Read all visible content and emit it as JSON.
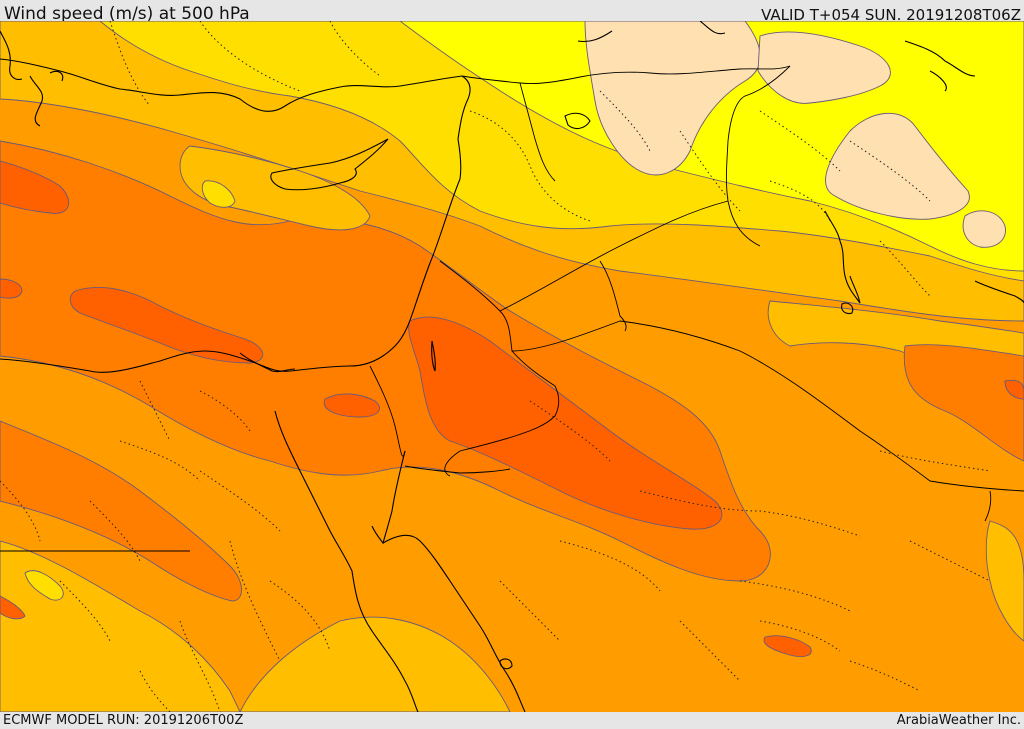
{
  "header": {
    "title": "Wind speed (m/s) at 500 hPa",
    "valid_time": "VALID T+054 SUN. 20191208T06Z"
  },
  "footer": {
    "model_run": "ECMWF MODEL RUN: 20191206T00Z",
    "credit": "ArabiaWeather Inc."
  },
  "colors": {
    "band_pale": "#ffe0b0",
    "band_yellow": "#ffff00",
    "band_gold": "#ffdf00",
    "band_amber": "#ffbe00",
    "band_orange": "#ff9c00",
    "band_dark_orange": "#ff7e00",
    "band_red_orange": "#ff6000"
  }
}
